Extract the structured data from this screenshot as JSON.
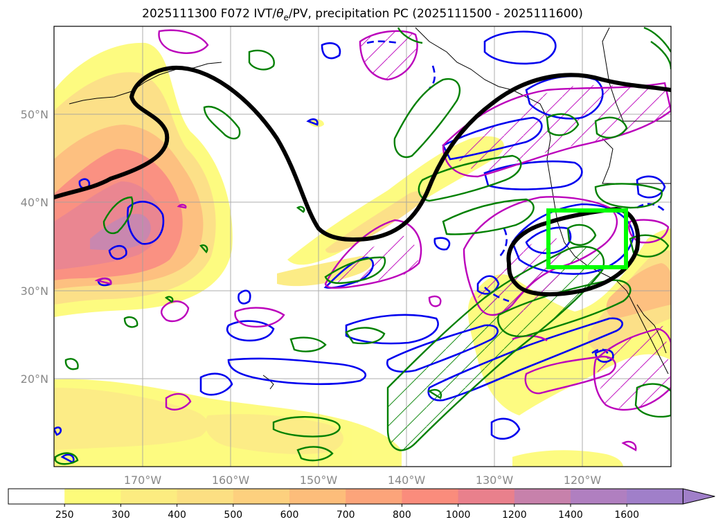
{
  "title": {
    "prefix": "2025111300 F072 IVT/",
    "theta": "θ",
    "theta_sub": "e",
    "suffix": "/PV, precipitation PC (2025111500 - 2025111600)"
  },
  "axes": {
    "lon_labels": [
      "170°W",
      "160°W",
      "150°W",
      "140°W",
      "130°W",
      "120°W"
    ],
    "lat_labels": [
      "50°N",
      "40°N",
      "30°N",
      "20°N"
    ]
  },
  "colorbar": {
    "ticks": [
      "250",
      "300",
      "400",
      "500",
      "600",
      "700",
      "800",
      "1000",
      "1200",
      "1400",
      "1600"
    ],
    "colors": [
      "#ffffff",
      "#fdfb7a",
      "#fcec80",
      "#fcdf82",
      "#fdd07e",
      "#fdbd7a",
      "#fca47a",
      "#fa8c7c",
      "#e9808c",
      "#c781ab",
      "#b07fc0",
      "#a07fc9"
    ]
  },
  "contour_colors": {
    "pv": "#000000",
    "theta_e": "#0000ee",
    "precip": "#008000",
    "magenta": "#bb00bb",
    "target_box": "#00ff00"
  }
}
